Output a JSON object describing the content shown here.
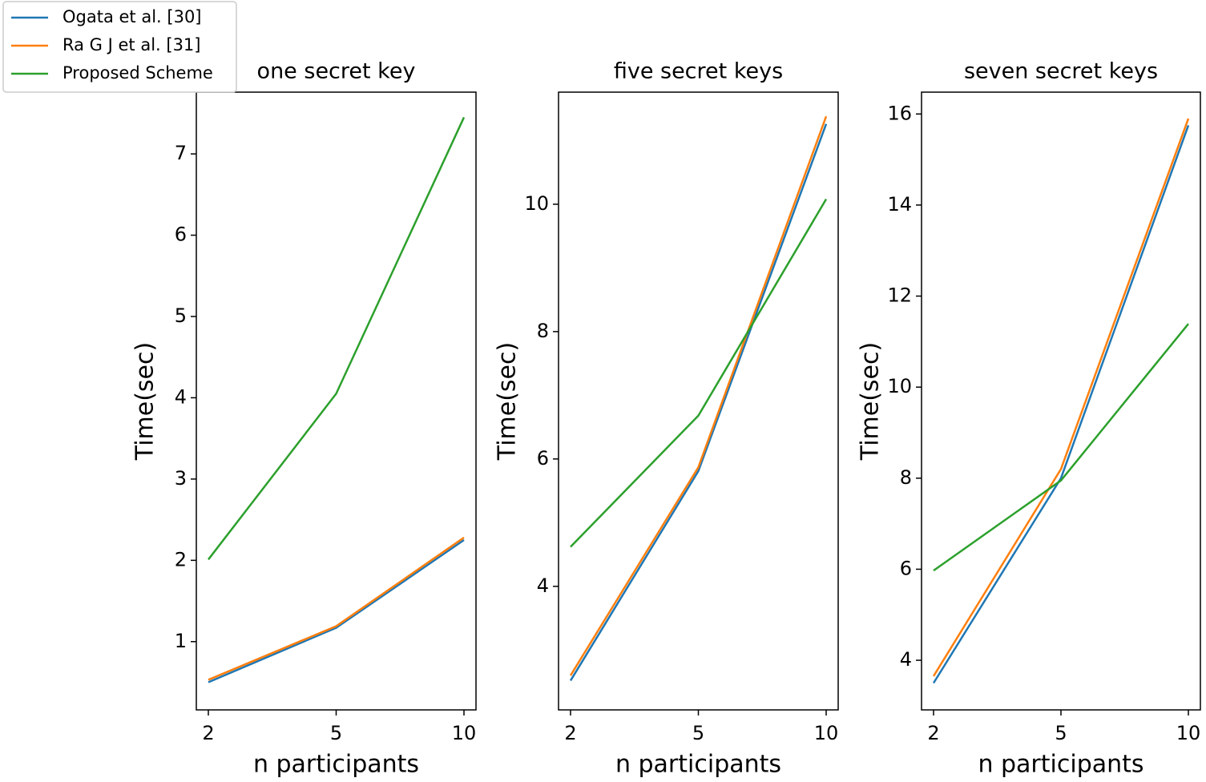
{
  "chart_data": [
    {
      "type": "line",
      "title": "one secret key",
      "x_label": "n participants",
      "y_label": "Time(sec)",
      "categories": [
        "2",
        "5",
        "10"
      ],
      "legend": "upper left",
      "series": [
        {
          "name": "Ogata et al. [30]",
          "color": "#1f77b4",
          "values": [
            0.5,
            1.17,
            2.25
          ]
        },
        {
          "name": "Ra G J et al. [31]",
          "color": "#ff7f0e",
          "values": [
            0.53,
            1.19,
            2.28
          ]
        },
        {
          "name": "Proposed Scheme",
          "color": "#2ca02c",
          "values": [
            2.01,
            4.05,
            7.45
          ]
        }
      ],
      "ylim": [
        0.16,
        7.76
      ],
      "yticks": [
        1,
        2,
        3,
        4,
        5,
        6,
        7
      ]
    },
    {
      "type": "line",
      "title": "five secret keys",
      "x_label": "n participants",
      "y_label": "Time(sec)",
      "categories": [
        "2",
        "5",
        "10"
      ],
      "series": [
        {
          "color": "#1f77b4",
          "values": [
            2.52,
            5.81,
            11.26
          ]
        },
        {
          "color": "#ff7f0e",
          "values": [
            2.6,
            5.87,
            11.38
          ]
        },
        {
          "color": "#2ca02c",
          "values": [
            4.62,
            6.68,
            10.08
          ]
        }
      ],
      "ylim": [
        2.06,
        11.76
      ],
      "yticks": [
        4,
        6,
        8,
        10
      ]
    },
    {
      "type": "line",
      "title": "seven secret keys",
      "x_label": "n participants",
      "y_label": "Time(sec)",
      "categories": [
        "2",
        "5",
        "10"
      ],
      "series": [
        {
          "color": "#1f77b4",
          "values": [
            3.5,
            8.0,
            15.75
          ]
        },
        {
          "color": "#ff7f0e",
          "values": [
            3.65,
            8.2,
            15.9
          ]
        },
        {
          "color": "#2ca02c",
          "values": [
            5.97,
            7.95,
            11.39
          ]
        }
      ],
      "ylim": [
        2.91,
        16.48
      ],
      "yticks": [
        4,
        6,
        8,
        10,
        12,
        14,
        16
      ]
    }
  ]
}
